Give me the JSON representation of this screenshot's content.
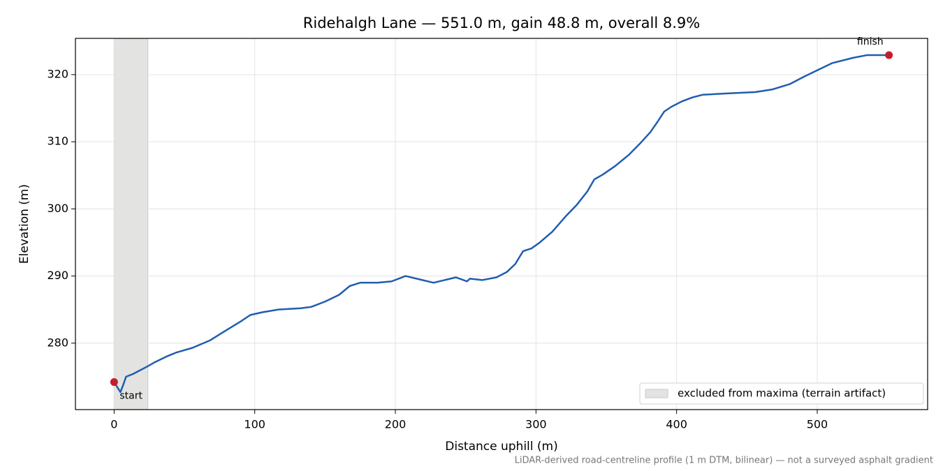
{
  "chart_data": {
    "type": "line",
    "title": "Ridehalgh Lane — 551.0 m, gain 48.8 m, overall 8.9%",
    "xlabel": "Distance uphill (m)",
    "ylabel": "Elevation (m)",
    "footnote": "LiDAR-derived road-centreline profile (1 m DTM, bilinear) — not a surveyed asphalt gradient",
    "x": [
      0,
      4.5,
      6.5,
      8.5,
      13.4,
      23.4,
      29.3,
      38.3,
      44.2,
      55.7,
      68.1,
      78.0,
      90.5,
      96.9,
      105.4,
      116.8,
      132.7,
      140.2,
      150.1,
      160.0,
      167.5,
      175.0,
      187.4,
      197.3,
      207.3,
      217.2,
      227.2,
      237.1,
      243.0,
      251.0,
      253.0,
      261.9,
      271.9,
      279.3,
      285.3,
      290.8,
      296.7,
      302.7,
      311.6,
      321.6,
      329.0,
      336.5,
      341.5,
      347.4,
      356.4,
      366.3,
      373.8,
      381.2,
      386.2,
      391.2,
      396.2,
      403.6,
      411.1,
      418.5,
      435.9,
      455.8,
      468.2,
      480.6,
      490.6,
      500.5,
      510.4,
      525.4,
      535.3,
      549.2,
      551.0
    ],
    "series": [
      {
        "color": "#1f5db0",
        "values": [
          274.2,
          272.7,
          273.8,
          275.0,
          275.4,
          276.5,
          277.2,
          278.1,
          278.6,
          279.3,
          280.4,
          281.7,
          283.3,
          284.2,
          284.6,
          285.0,
          285.2,
          285.4,
          286.2,
          287.2,
          288.5,
          289.0,
          289.0,
          289.2,
          290.0,
          289.5,
          289.0,
          289.5,
          289.8,
          289.2,
          289.6,
          289.4,
          289.8,
          290.6,
          291.8,
          293.7,
          294.1,
          295.0,
          296.6,
          299.0,
          300.6,
          302.6,
          304.4,
          305.1,
          306.4,
          308.1,
          309.7,
          311.4,
          312.9,
          314.5,
          315.2,
          316.0,
          316.6,
          317.0,
          317.2,
          317.4,
          317.8,
          318.6,
          319.7,
          320.7,
          321.7,
          322.5,
          322.9,
          322.9,
          322.9
        ]
      }
    ],
    "points": [
      {
        "x": 0,
        "y": 274.2,
        "label": "start",
        "color": "#c41e2a"
      },
      {
        "x": 551.0,
        "y": 322.9,
        "label": "finish",
        "color": "#c41e2a"
      }
    ],
    "span": {
      "x": [
        0,
        24
      ],
      "label": "excluded from maxima (terrain artifact)",
      "color": "#e3e3e1"
    },
    "xlim": [
      -27.5,
      578.5
    ],
    "ylim": [
      270.1,
      325.4
    ],
    "xticks": [
      0,
      100,
      200,
      300,
      400,
      500
    ],
    "yticks": [
      280,
      290,
      300,
      310,
      320
    ],
    "grid": true,
    "legend": "lower right"
  }
}
